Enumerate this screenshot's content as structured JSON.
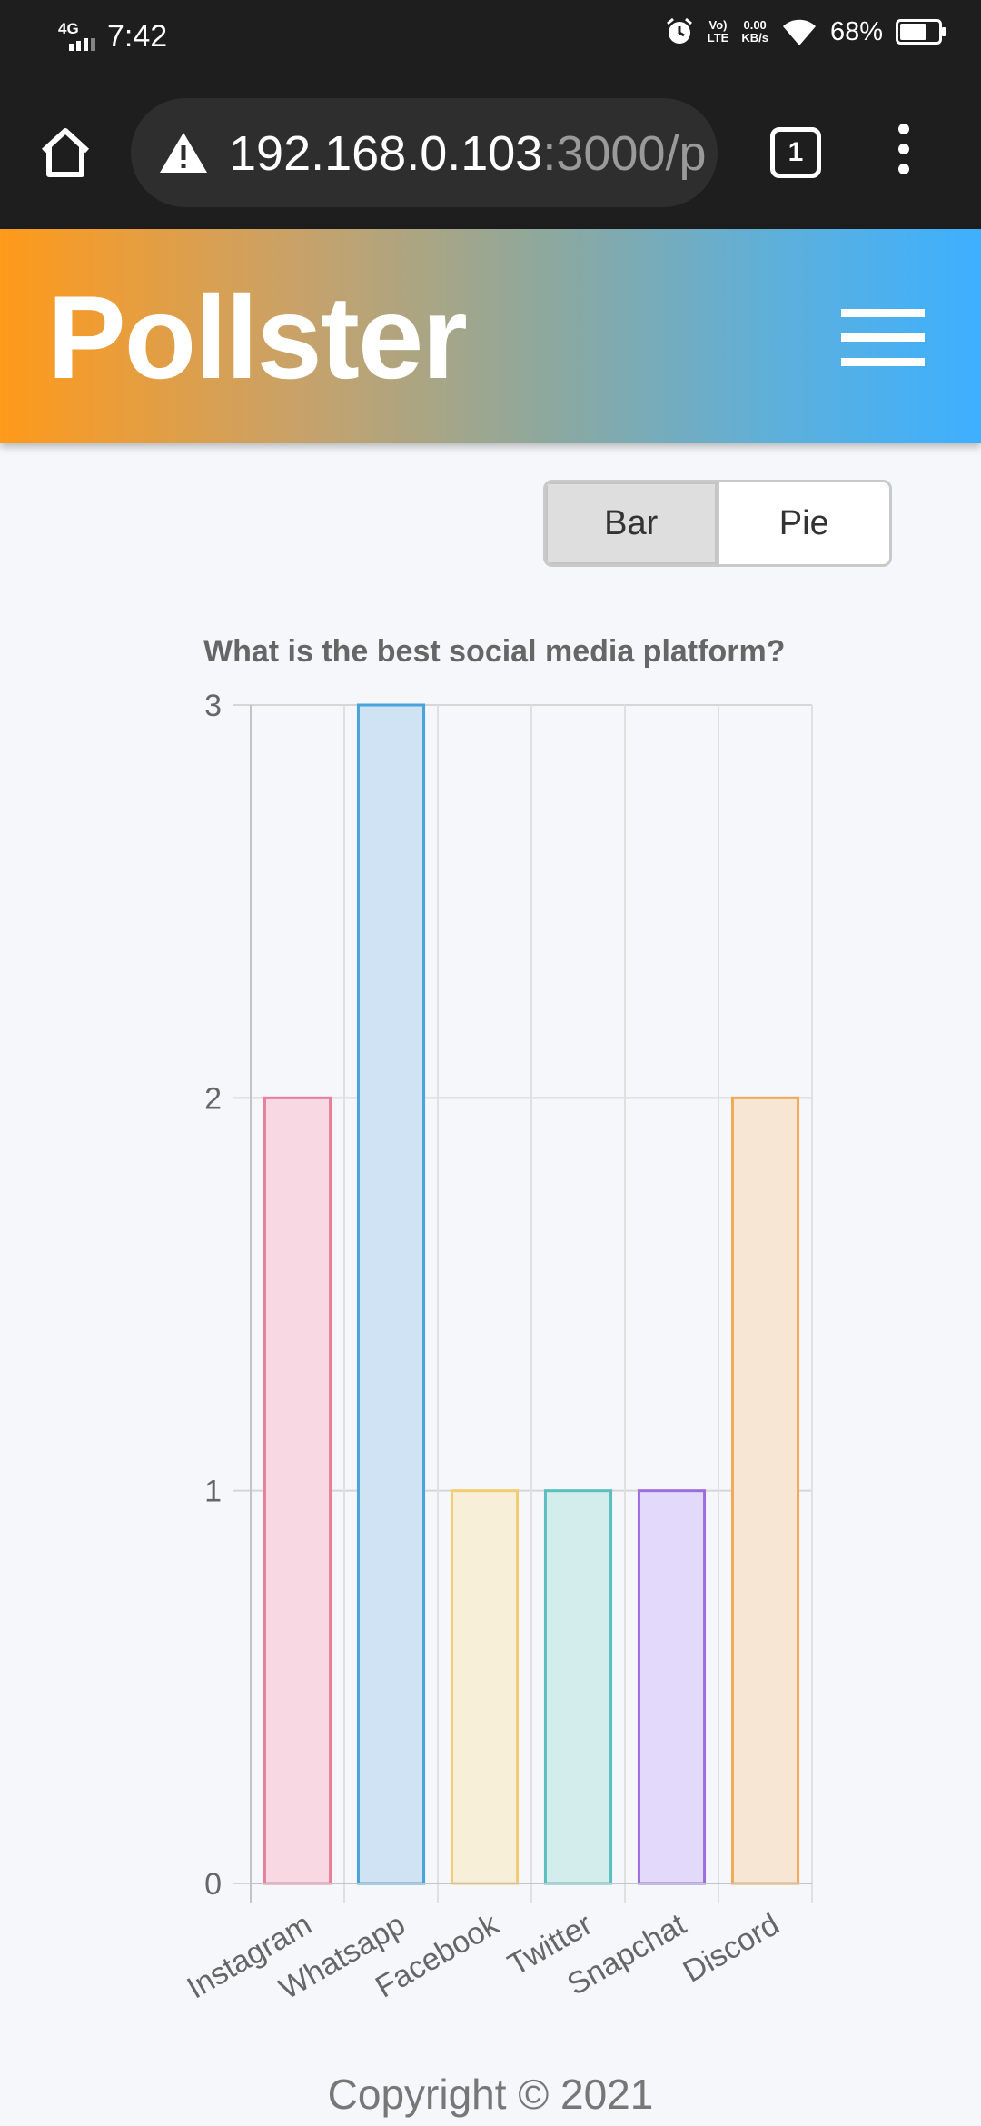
{
  "status_bar": {
    "network": "4G",
    "time": "7:42",
    "volte_line1": "Vo)",
    "volte_line2": "LTE",
    "speed_value": "0.00",
    "speed_unit": "KB/s",
    "battery": "68%",
    "battery_level": 0.68
  },
  "browser": {
    "url_host": "192.168.0.103",
    "url_rest": ":3000/p",
    "tab_count": "1"
  },
  "header": {
    "title": "Pollster"
  },
  "toggle": {
    "bar_label": "Bar",
    "pie_label": "Pie",
    "active": "Bar"
  },
  "chart_data": {
    "type": "bar",
    "title": "What is the best social media platform?",
    "categories": [
      "Instagram",
      "Whatsapp",
      "Facebook",
      "Twitter",
      "Snapchat",
      "Discord"
    ],
    "values": [
      2,
      3,
      1,
      1,
      1,
      2
    ],
    "ylim": [
      0,
      3
    ],
    "yticks": [
      "0",
      "1",
      "2",
      "3"
    ],
    "grid": true,
    "colors": {
      "fill": [
        "#f8d9e3",
        "#cfe3f5",
        "#f8efd8",
        "#d3ecec",
        "#e3d9fb",
        "#f8e6d5"
      ],
      "stroke": [
        "#e8809c",
        "#4aa3d9",
        "#f2cc72",
        "#5cbfbf",
        "#9a6fdd",
        "#f2a957"
      ]
    }
  },
  "footer": {
    "copyright": "Copyright © 2021"
  }
}
